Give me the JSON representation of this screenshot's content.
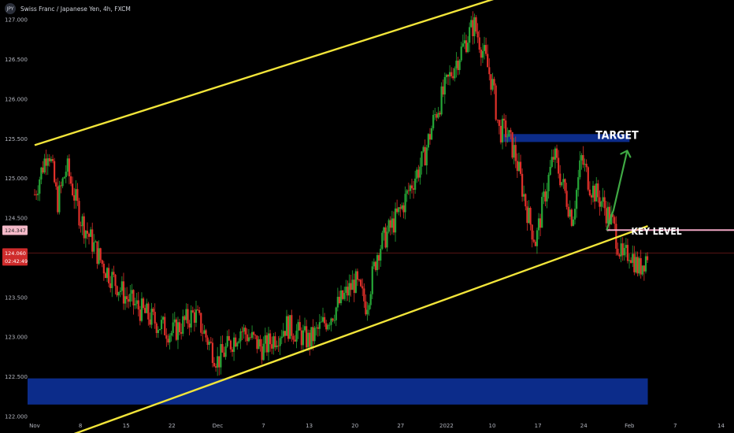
{
  "header": {
    "symbol_badge": "JPY",
    "title": "Swiss Franc / Japanese Yen, 4h, FXCM"
  },
  "colors": {
    "background": "#000000",
    "bull_candle": "#26a637",
    "bear_candle": "#e0302a",
    "channel_line": "#f2e53a",
    "zone": "#0c2c8a",
    "key_level": "#f0a6c3",
    "arrow": "#3fa944",
    "price_line": "#5a1414"
  },
  "chart_data": {
    "type": "candlestick",
    "symbol": "CHFJPY",
    "timeframe": "4h",
    "source": "FXCM",
    "ylim": [
      121.98,
      127.25
    ],
    "y_ticks": [
      "127.000",
      "126.500",
      "126.000",
      "125.500",
      "125.000",
      "124.500",
      "123.500",
      "123.000",
      "122.500",
      "122.000"
    ],
    "y_tick_values": [
      127.0,
      126.5,
      126.0,
      125.5,
      125.0,
      124.5,
      123.5,
      123.0,
      122.5,
      122.0
    ],
    "x_ticks": [
      "Nov",
      "8",
      "15",
      "22",
      "Dec",
      "7",
      "13",
      "20",
      "27",
      "2022",
      "10",
      "17",
      "24",
      "Feb",
      "7",
      "14"
    ],
    "price_tags": [
      {
        "value": "124.347",
        "level": 124.347,
        "style": "pink"
      },
      {
        "value": "124.060",
        "level": 124.06,
        "countdown": "02:42:49",
        "style": "red"
      }
    ],
    "series_path": [
      [
        0.0,
        124.8
      ],
      [
        0.6,
        125.4
      ],
      [
        1.0,
        124.7
      ],
      [
        1.4,
        125.15
      ],
      [
        2.0,
        124.5
      ],
      [
        3.0,
        123.9
      ],
      [
        4.0,
        123.5
      ],
      [
        5.0,
        123.25
      ],
      [
        6.0,
        123.05
      ],
      [
        7.0,
        123.3
      ],
      [
        8.0,
        122.7
      ],
      [
        9.0,
        123.1
      ],
      [
        10.0,
        122.85
      ],
      [
        11.0,
        123.15
      ],
      [
        12.0,
        122.95
      ],
      [
        13.0,
        123.3
      ],
      [
        14.0,
        123.7
      ],
      [
        14.5,
        123.4
      ],
      [
        15.0,
        124.1
      ],
      [
        16.0,
        124.6
      ],
      [
        16.5,
        124.95
      ],
      [
        17.0,
        125.25
      ],
      [
        17.5,
        125.8
      ],
      [
        18.3,
        126.4
      ],
      [
        19.2,
        126.95
      ],
      [
        19.6,
        126.6
      ],
      [
        20.0,
        126.2
      ],
      [
        20.3,
        125.6
      ],
      [
        20.6,
        125.6
      ],
      [
        21.0,
        125.3
      ],
      [
        21.6,
        124.5
      ],
      [
        21.9,
        124.2
      ],
      [
        22.3,
        124.8
      ],
      [
        22.7,
        125.3
      ],
      [
        23.1,
        124.9
      ],
      [
        23.5,
        124.5
      ],
      [
        23.9,
        125.25
      ],
      [
        24.3,
        124.9
      ],
      [
        24.8,
        124.7
      ],
      [
        25.3,
        124.4
      ],
      [
        25.7,
        123.95
      ],
      [
        26.0,
        124.1
      ],
      [
        26.4,
        123.85
      ],
      [
        26.8,
        124.06
      ]
    ],
    "channel": {
      "upper": {
        "from": [
          0.0,
          125.42
        ],
        "to": [
          26.8,
          127.88
        ]
      },
      "lower": {
        "from": [
          0.0,
          121.6
        ],
        "to": [
          26.8,
          124.4
        ]
      }
    },
    "zones": [
      {
        "label": "",
        "y_top": 122.48,
        "y_bottom": 122.15,
        "x_from": 0.0,
        "x_to": 26.8
      },
      {
        "label": "TARGET",
        "y_top": 125.56,
        "y_bottom": 125.46,
        "x_from": 20.5,
        "x_to": 26.0
      }
    ],
    "key_level": {
      "label": "KEY LEVEL",
      "y": 124.35,
      "x_from": 25.0,
      "x_to": 26.8
    },
    "arrow": {
      "points": [
        [
          25.0,
          124.35
        ],
        [
          25.3,
          124.6
        ],
        [
          25.9,
          125.35
        ]
      ]
    },
    "grid": false,
    "legend": "none"
  }
}
